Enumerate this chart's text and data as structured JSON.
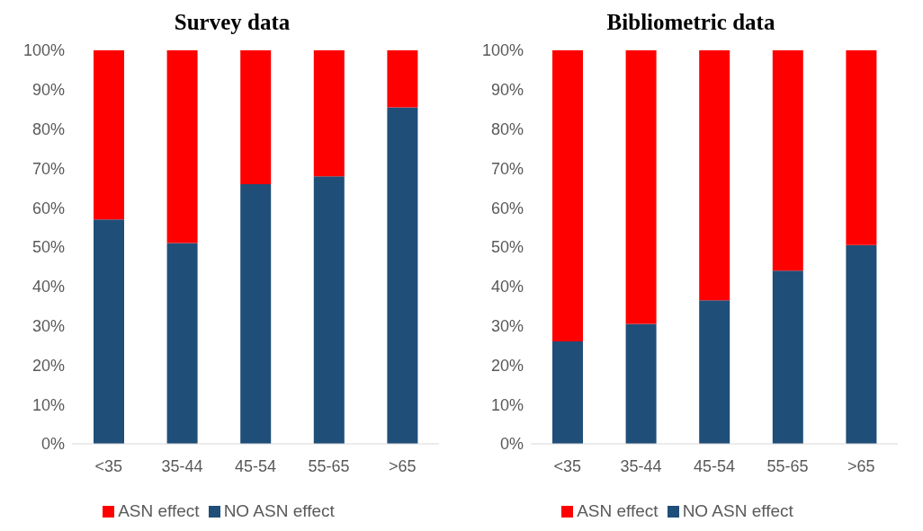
{
  "chart_data": [
    {
      "type": "bar",
      "title": "Survey data",
      "categories": [
        "<35",
        "35-44",
        "45-54",
        "55-65",
        ">65"
      ],
      "stacked": true,
      "legend": "bottom",
      "ylim": [
        0,
        100
      ],
      "yticks": [
        {
          "value": 0,
          "label": "0%"
        },
        {
          "value": 10,
          "label": "10%"
        },
        {
          "value": 20,
          "label": "20%"
        },
        {
          "value": 30,
          "label": "30%"
        },
        {
          "value": 40,
          "label": "40%"
        },
        {
          "value": 50,
          "label": "50%"
        },
        {
          "value": 60,
          "label": "60%"
        },
        {
          "value": 70,
          "label": "70%"
        },
        {
          "value": 80,
          "label": "80%"
        },
        {
          "value": 90,
          "label": "90%"
        },
        {
          "value": 100,
          "label": "100%"
        }
      ],
      "series": [
        {
          "name": "NO ASN effect",
          "color": "#1f4e79",
          "values": [
            57,
            51,
            66,
            68,
            85.5
          ]
        },
        {
          "name": "ASN effect",
          "color": "#ff0000",
          "values": [
            43,
            49,
            34,
            32,
            14.5
          ]
        }
      ]
    },
    {
      "type": "bar",
      "title": "Bibliometric data",
      "categories": [
        "<35",
        "35-44",
        "45-54",
        "55-65",
        ">65"
      ],
      "stacked": true,
      "legend": "bottom",
      "ylim": [
        0,
        100
      ],
      "yticks": [
        {
          "value": 0,
          "label": "0%"
        },
        {
          "value": 10,
          "label": "10%"
        },
        {
          "value": 20,
          "label": "20%"
        },
        {
          "value": 30,
          "label": "30%"
        },
        {
          "value": 40,
          "label": "40%"
        },
        {
          "value": 50,
          "label": "50%"
        },
        {
          "value": 60,
          "label": "60%"
        },
        {
          "value": 70,
          "label": "70%"
        },
        {
          "value": 80,
          "label": "80%"
        },
        {
          "value": 90,
          "label": "90%"
        },
        {
          "value": 100,
          "label": "100%"
        }
      ],
      "series": [
        {
          "name": "NO ASN effect",
          "color": "#1f4e79",
          "values": [
            26,
            30.5,
            36.5,
            44,
            50.5
          ]
        },
        {
          "name": "ASN effect",
          "color": "#ff0000",
          "values": [
            74,
            69.5,
            63.5,
            56,
            49.5
          ]
        }
      ]
    }
  ]
}
